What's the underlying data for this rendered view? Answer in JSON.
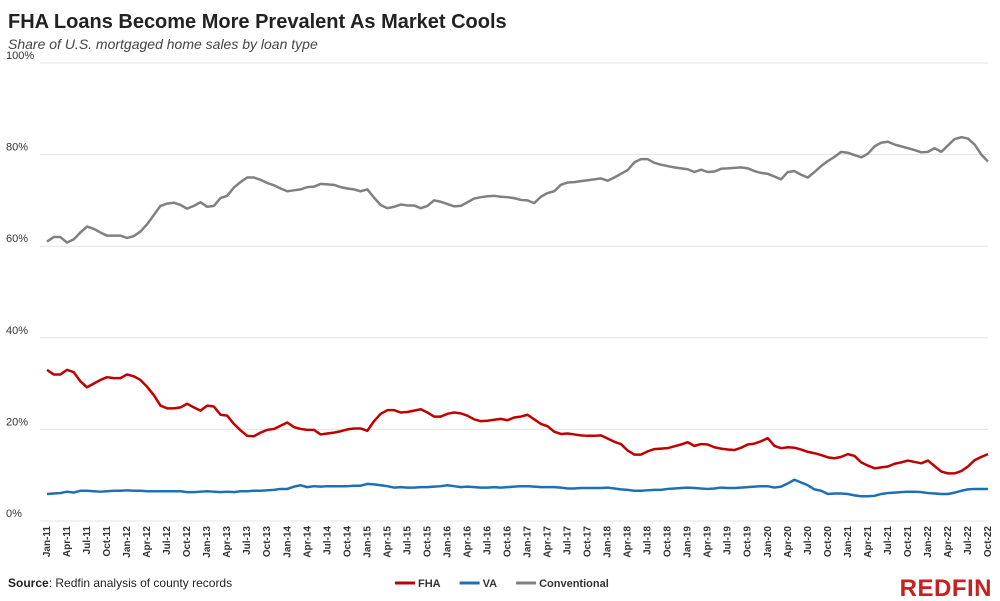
{
  "chart_data": {
    "type": "line",
    "title": "FHA Loans Become More Prevalent As Market Cools",
    "subtitle": "Share of U.S. mortgaged home sales by loan type",
    "source_label": "Source",
    "source_text": ": Redfin analysis of county records",
    "logo": "REDFIN",
    "categories": [
      "Jan-11",
      null,
      null,
      "Apr-11",
      null,
      null,
      "Jul-11",
      null,
      null,
      "Oct-11",
      null,
      null,
      "Jan-12",
      null,
      null,
      "Apr-12",
      null,
      null,
      "Jul-12",
      null,
      null,
      "Oct-12",
      null,
      null,
      "Jan-13",
      null,
      null,
      "Apr-13",
      null,
      null,
      "Jul-13",
      null,
      null,
      "Oct-13",
      null,
      null,
      "Jan-14",
      null,
      null,
      "Apr-14",
      null,
      null,
      "Jul-14",
      null,
      null,
      "Oct-14",
      null,
      null,
      "Jan-15",
      null,
      null,
      "Apr-15",
      null,
      null,
      "Jul-15",
      null,
      null,
      "Oct-15",
      null,
      null,
      "Jan-16",
      null,
      null,
      "Apr-16",
      null,
      null,
      "Jul-16",
      null,
      null,
      "Oct-16",
      null,
      null,
      "Jan-17",
      null,
      null,
      "Apr-17",
      null,
      null,
      "Jul-17",
      null,
      null,
      "Oct-17",
      null,
      null,
      "Jan-18",
      null,
      null,
      "Apr-18",
      null,
      null,
      "Jul-18",
      null,
      null,
      "Oct-18",
      null,
      null,
      "Jan-19",
      null,
      null,
      "Apr-19",
      null,
      null,
      "Jul-19",
      null,
      null,
      "Oct-19",
      null,
      null,
      "Jan-20",
      null,
      null,
      "Apr-20",
      null,
      null,
      "Jul-20",
      null,
      null,
      "Oct-20",
      null,
      null,
      "Jan-21",
      null,
      null,
      "Apr-21",
      null,
      null,
      "Jul-21",
      null,
      null,
      "Oct-21",
      null,
      null,
      "Jan-22",
      null,
      null,
      "Apr-22",
      null,
      null,
      "Jul-22",
      null,
      null,
      "Oct-22"
    ],
    "series": [
      {
        "name": "FHA",
        "color": "#c00000",
        "values": [
          33,
          32,
          32,
          33,
          32.5,
          30.5,
          29.2,
          30,
          30.8,
          31.4,
          31.2,
          31.2,
          32,
          31.6,
          30.8,
          29.3,
          27.5,
          25.2,
          24.6,
          24.6,
          24.8,
          25.6,
          24.8,
          24.1,
          25.2,
          25,
          23.2,
          23,
          21.2,
          19.8,
          18.6,
          18.5,
          19.3,
          19.9,
          20.1,
          20.8,
          21.5,
          20.5,
          20.1,
          19.9,
          19.9,
          18.9,
          19.1,
          19.3,
          19.6,
          20,
          20.2,
          20.2,
          19.7,
          21.8,
          23.4,
          24.2,
          24.2,
          23.7,
          23.8,
          24.1,
          24.4,
          23.7,
          22.8,
          22.8,
          23.4,
          23.7,
          23.5,
          23,
          22.2,
          21.8,
          21.9,
          22.1,
          22.3,
          22,
          22.6,
          22.8,
          23.2,
          22.2,
          21.2,
          20.7,
          19.5,
          19,
          19.1,
          18.9,
          18.7,
          18.6,
          18.6,
          18.7,
          18,
          17.3,
          16.8,
          15.4,
          14.5,
          14.5,
          15.2,
          15.7,
          15.8,
          15.9,
          16.3,
          16.7,
          17.2,
          16.4,
          16.8,
          16.7,
          16.1,
          15.8,
          15.6,
          15.5,
          16,
          16.7,
          16.9,
          17.4,
          18.1,
          16.4,
          15.9,
          16.1,
          16,
          15.6,
          15.1,
          14.8,
          14.4,
          13.9,
          13.7,
          14,
          14.6,
          14.2,
          12.8,
          12.1,
          11.5,
          11.7,
          11.9,
          12.5,
          12.8,
          13.2,
          12.9,
          12.6,
          13.2,
          12,
          10.8,
          10.4,
          10.4,
          10.9,
          11.9,
          13.3,
          14,
          14.6
        ]
      },
      {
        "name": "VA",
        "color": "#1f6fb5",
        "values": [
          5.9,
          6,
          6.1,
          6.4,
          6.2,
          6.6,
          6.6,
          6.5,
          6.4,
          6.5,
          6.6,
          6.6,
          6.7,
          6.6,
          6.6,
          6.5,
          6.5,
          6.5,
          6.5,
          6.5,
          6.5,
          6.3,
          6.3,
          6.4,
          6.5,
          6.4,
          6.3,
          6.4,
          6.3,
          6.5,
          6.5,
          6.6,
          6.6,
          6.7,
          6.8,
          7,
          7,
          7.5,
          7.8,
          7.4,
          7.6,
          7.5,
          7.6,
          7.6,
          7.6,
          7.6,
          7.7,
          7.7,
          8.1,
          8,
          7.8,
          7.6,
          7.3,
          7.4,
          7.3,
          7.3,
          7.4,
          7.4,
          7.5,
          7.6,
          7.8,
          7.6,
          7.4,
          7.5,
          7.4,
          7.3,
          7.3,
          7.4,
          7.3,
          7.4,
          7.5,
          7.6,
          7.6,
          7.5,
          7.4,
          7.4,
          7.4,
          7.3,
          7.1,
          7.1,
          7.2,
          7.2,
          7.2,
          7.2,
          7.3,
          7.1,
          6.9,
          6.8,
          6.6,
          6.6,
          6.7,
          6.8,
          6.8,
          7,
          7.1,
          7.2,
          7.3,
          7.2,
          7.1,
          7,
          7.1,
          7.3,
          7.2,
          7.2,
          7.3,
          7.4,
          7.5,
          7.6,
          7.6,
          7.3,
          7.5,
          8.2,
          9,
          8.4,
          7.8,
          6.9,
          6.6,
          5.9,
          6,
          6,
          5.9,
          5.6,
          5.4,
          5.4,
          5.5,
          5.9,
          6.1,
          6.2,
          6.3,
          6.4,
          6.4,
          6.3,
          6.1,
          6,
          5.9,
          5.9,
          6.2,
          6.6,
          6.9,
          7,
          7,
          7
        ]
      },
      {
        "name": "Conventional",
        "color": "#808080",
        "values": [
          61,
          62,
          62,
          60.8,
          61.5,
          63,
          64.3,
          63.8,
          63,
          62.3,
          62.3,
          62.3,
          61.8,
          62.2,
          63.2,
          64.8,
          66.8,
          68.8,
          69.3,
          69.5,
          69,
          68.2,
          68.8,
          69.6,
          68.6,
          68.8,
          70.5,
          71,
          72.8,
          74,
          75,
          75,
          74.5,
          73.8,
          73.3,
          72.6,
          72,
          72.2,
          72.4,
          72.9,
          73,
          73.6,
          73.5,
          73.4,
          72.9,
          72.6,
          72.4,
          72,
          72.4,
          70.6,
          69,
          68.3,
          68.6,
          69.1,
          68.9,
          68.9,
          68.3,
          68.8,
          70,
          69.7,
          69.2,
          68.7,
          68.8,
          69.6,
          70.4,
          70.7,
          70.9,
          71,
          70.8,
          70.7,
          70.5,
          70.1,
          70,
          69.4,
          70.8,
          71.6,
          72,
          73.4,
          73.9,
          74,
          74.2,
          74.4,
          74.6,
          74.8,
          74.3,
          75,
          75.8,
          76.6,
          78.3,
          79,
          79,
          78.2,
          77.8,
          77.5,
          77.2,
          77,
          76.8,
          76.2,
          76.7,
          76.2,
          76.3,
          76.9,
          77,
          77.1,
          77.2,
          77,
          76.4,
          76,
          75.8,
          75.2,
          74.6,
          76.2,
          76.4,
          75.6,
          75,
          76.2,
          77.5,
          78.6,
          79.5,
          80.6,
          80.4,
          79.9,
          79.4,
          80.2,
          81.8,
          82.6,
          82.8,
          82.2,
          81.8,
          81.4,
          81,
          80.5,
          80.6,
          81.4,
          80.6,
          82,
          83.4,
          83.8,
          83.5,
          82.2,
          80,
          78.5
        ]
      }
    ],
    "ylim": [
      0,
      100
    ],
    "yticks": [
      {
        "value": 0,
        "label": "0%"
      },
      {
        "value": 20,
        "label": "20%"
      },
      {
        "value": 40,
        "label": "40%"
      },
      {
        "value": 60,
        "label": "60%"
      },
      {
        "value": 80,
        "label": "80%"
      },
      {
        "value": 100,
        "label": "100%"
      }
    ],
    "grid": true,
    "legend": "bottom"
  }
}
